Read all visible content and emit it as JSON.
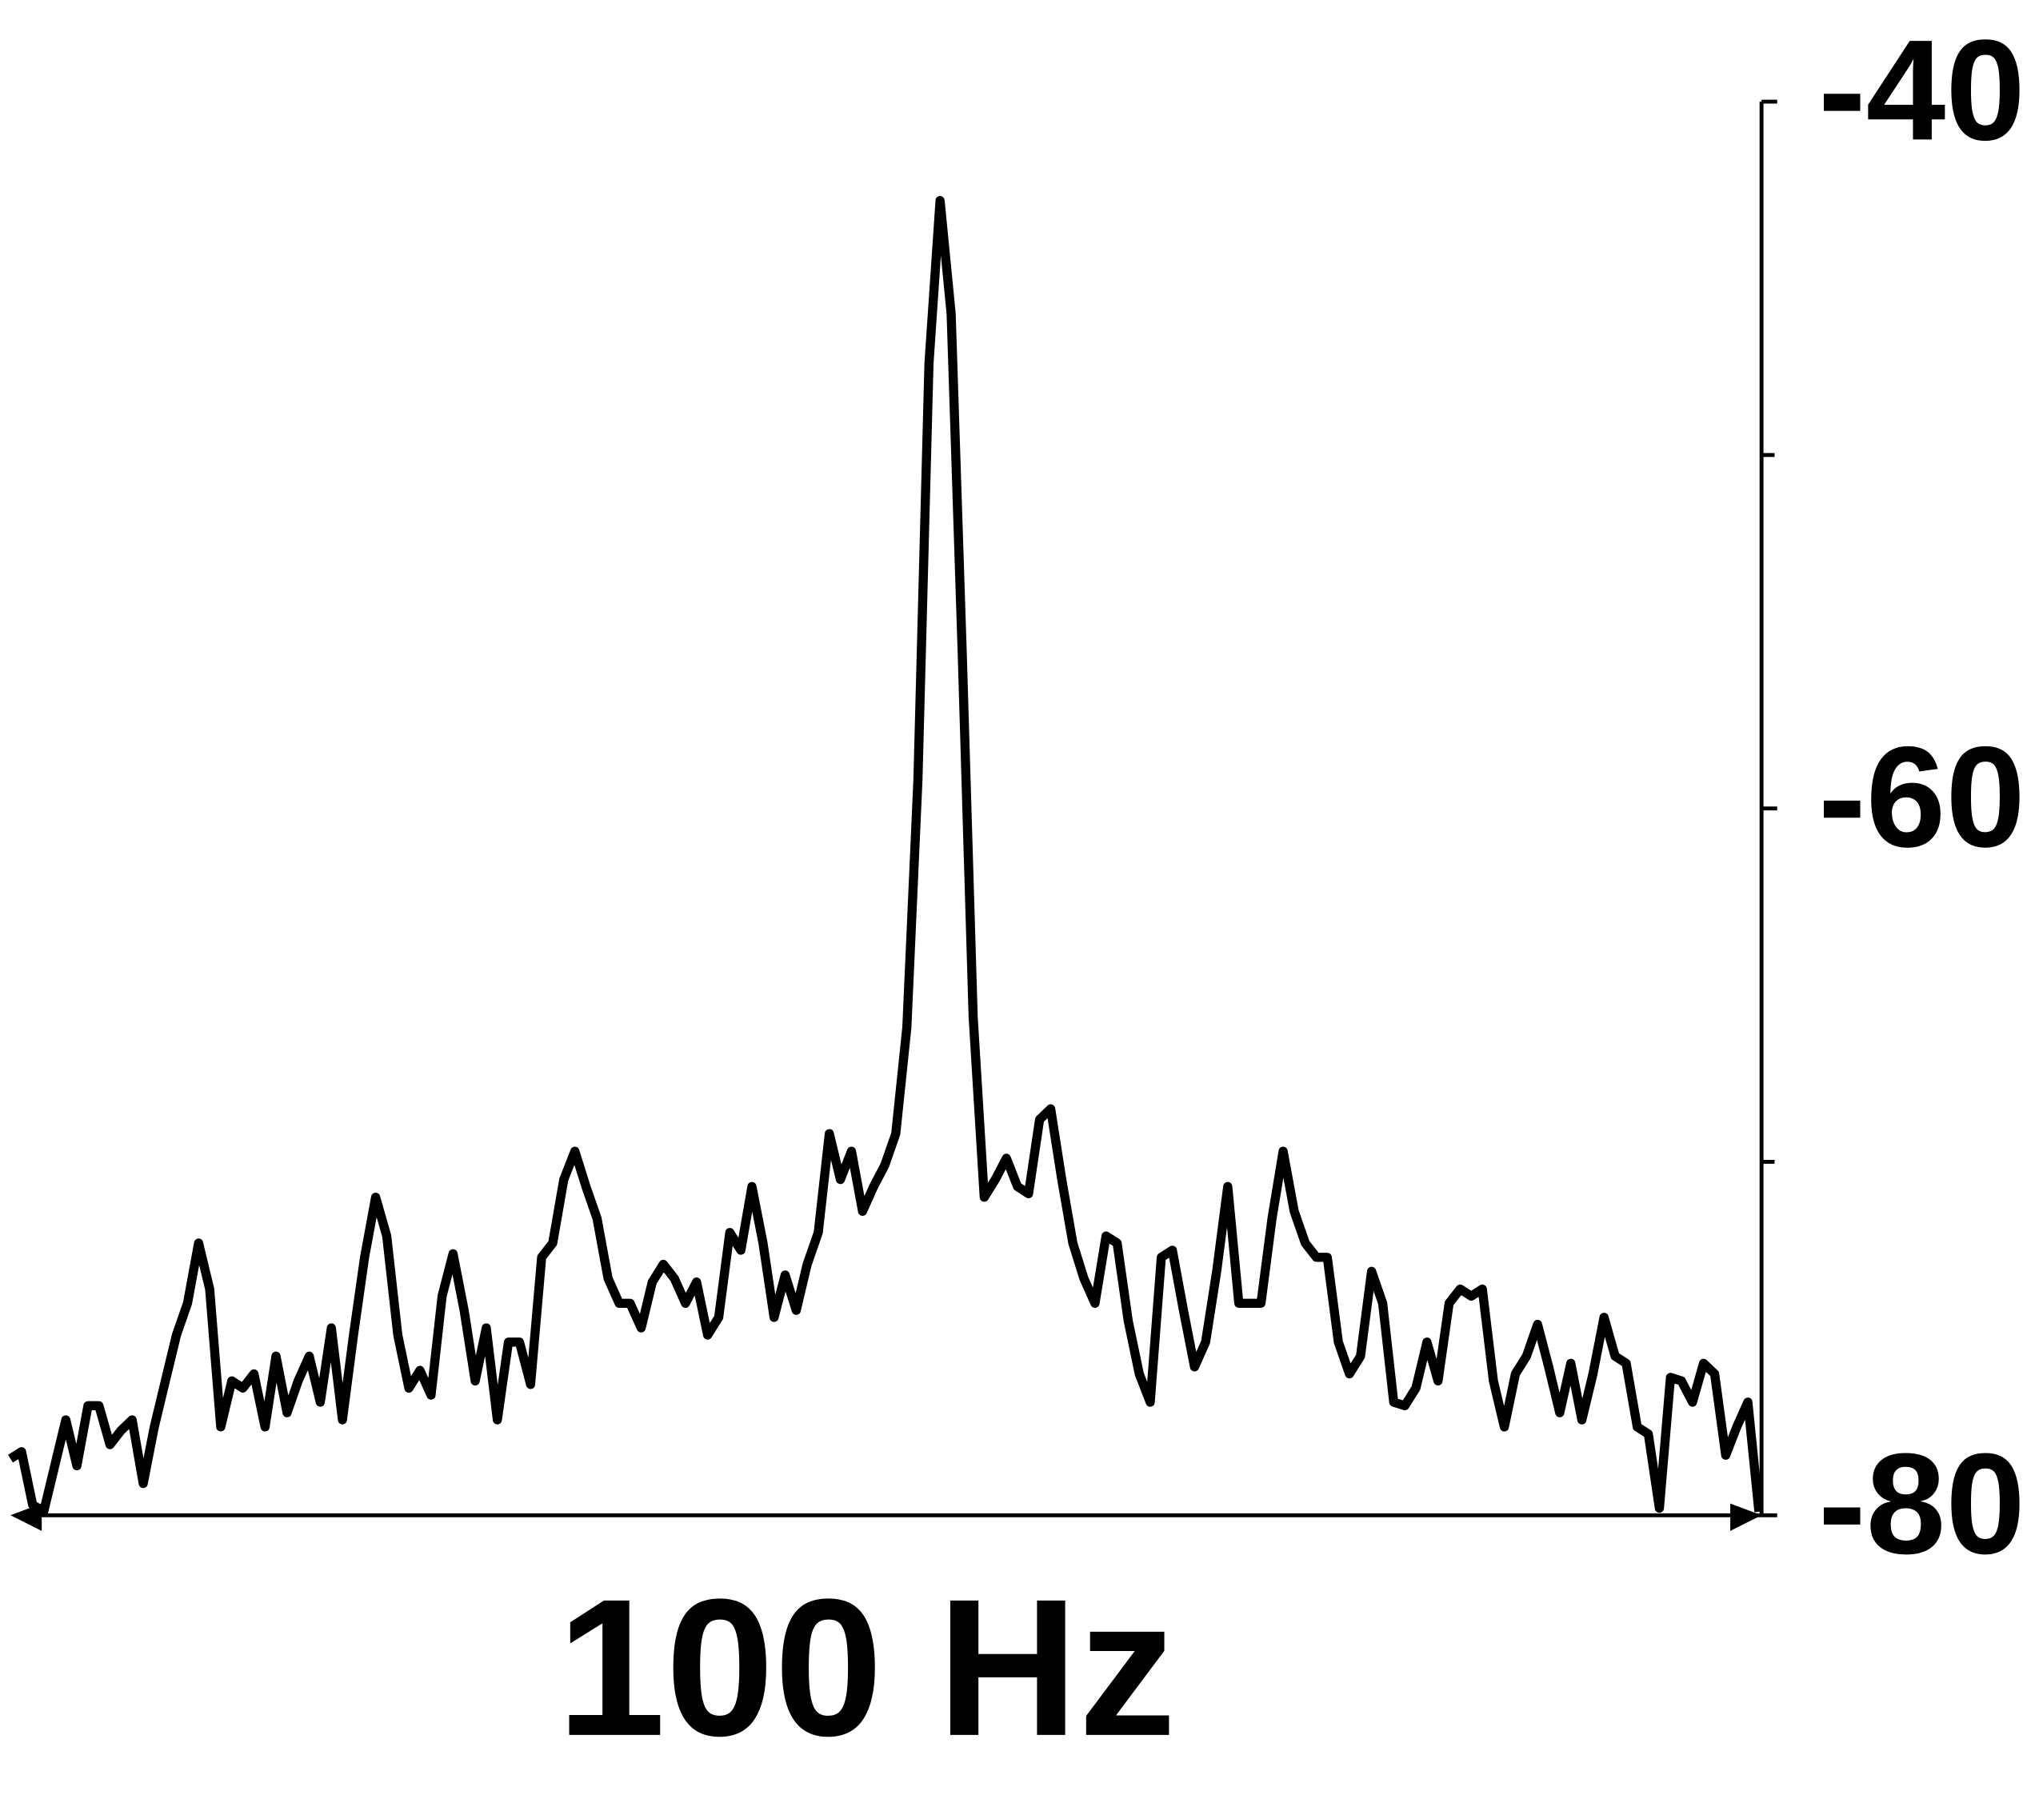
{
  "chart_data": {
    "type": "line",
    "xlabel": "100 Hz",
    "color": "#000000",
    "ylim": [
      -80,
      -40
    ],
    "yticks": [
      -80,
      -60,
      -40
    ],
    "minor_yticks": [
      -70,
      -50
    ],
    "y_axis_side": "right",
    "values": [
      -78.4,
      -78.2,
      -79.7,
      -79.9,
      -78.6,
      -77.3,
      -78.6,
      -76.9,
      -76.9,
      -78.0,
      -77.6,
      -77.3,
      -79.1,
      -77.5,
      -76.2,
      -74.9,
      -74.0,
      -72.3,
      -73.6,
      -77.5,
      -76.2,
      -76.4,
      -76.0,
      -77.5,
      -75.5,
      -77.1,
      -76.2,
      -75.5,
      -76.8,
      -74.7,
      -77.3,
      -74.9,
      -72.7,
      -71.0,
      -72.1,
      -74.9,
      -76.4,
      -75.9,
      -76.6,
      -73.8,
      -72.6,
      -74.2,
      -76.2,
      -74.7,
      -77.3,
      -75.1,
      -75.1,
      -76.3,
      -72.7,
      -72.3,
      -70.5,
      -69.7,
      -70.7,
      -71.6,
      -73.3,
      -74.0,
      -74.0,
      -74.7,
      -73.4,
      -72.9,
      -73.3,
      -74.0,
      -73.4,
      -74.9,
      -74.4,
      -72.0,
      -72.5,
      -70.7,
      -72.3,
      -74.4,
      -73.2,
      -74.2,
      -72.9,
      -72.0,
      -69.2,
      -70.5,
      -69.7,
      -71.4,
      -70.7,
      -70.1,
      -69.2,
      -66.2,
      -59.2,
      -47.4,
      -42.8,
      -46.0,
      -55.6,
      -65.9,
      -71.0,
      -70.5,
      -69.9,
      -70.7,
      -70.9,
      -68.8,
      -68.5,
      -70.5,
      -72.3,
      -73.3,
      -74.0,
      -72.1,
      -72.3,
      -74.5,
      -76.0,
      -76.8,
      -72.7,
      -72.5,
      -74.2,
      -75.8,
      -75.1,
      -73.1,
      -70.7,
      -74.0,
      -74.0,
      -74.0,
      -71.6,
      -69.7,
      -71.4,
      -72.3,
      -72.7,
      -72.7,
      -75.1,
      -76.0,
      -75.5,
      -73.1,
      -74.0,
      -76.8,
      -76.9,
      -76.4,
      -75.1,
      -76.2,
      -74.0,
      -73.6,
      -73.8,
      -73.6,
      -76.2,
      -77.5,
      -76.0,
      -75.5,
      -74.6,
      -75.8,
      -77.1,
      -75.7,
      -77.3,
      -76.0,
      -74.4,
      -75.5,
      -75.7,
      -77.5,
      -77.7,
      -79.8,
      -76.1,
      -76.2,
      -76.8,
      -75.7,
      -76.0,
      -78.3,
      -77.5,
      -76.8,
      -79.9
    ]
  }
}
